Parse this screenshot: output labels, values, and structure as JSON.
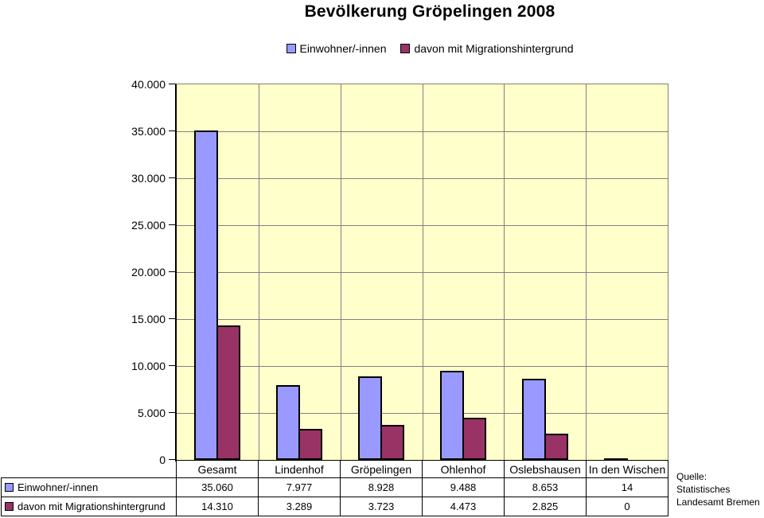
{
  "title": "Bevölkerung Gröpelingen 2008",
  "legend": [
    {
      "label": "Einwohner/-innen",
      "color": "#9999FF"
    },
    {
      "label": "davon mit Migrationshintergrund",
      "color": "#993366"
    }
  ],
  "source_note": {
    "lines": [
      "Quelle:",
      "Statistisches",
      "Landesamt Bremen"
    ]
  },
  "colors": {
    "plot_background": "#FFFFCC",
    "gridline": "#808080",
    "axis": "#000000",
    "series1": "#9999FF",
    "series2": "#993366"
  },
  "chart_data": {
    "type": "bar",
    "title": "Bevölkerung Gröpelingen 2008",
    "categories": [
      "Gesamt",
      "Lindenhof",
      "Gröpelingen",
      "Ohlenhof",
      "Oslebshausen",
      "In den Wischen"
    ],
    "series": [
      {
        "name": "Einwohner/-innen",
        "color": "#9999FF",
        "values": [
          35060,
          7977,
          8928,
          9488,
          8653,
          14
        ],
        "labels": [
          "35.060",
          "7.977",
          "8.928",
          "9.488",
          "8.653",
          "14"
        ]
      },
      {
        "name": "davon mit Migrationshintergrund",
        "color": "#993366",
        "values": [
          14310,
          3289,
          3723,
          4473,
          2825,
          0
        ],
        "labels": [
          "14.310",
          "3.289",
          "3.723",
          "4.473",
          "2.825",
          "0"
        ]
      }
    ],
    "xlabel": "",
    "ylabel": "",
    "ylim": [
      0,
      40000
    ],
    "y_tick_step": 5000,
    "y_tick_labels": [
      "0",
      "5.000",
      "10.000",
      "15.000",
      "20.000",
      "25.000",
      "30.000",
      "35.000",
      "40.000"
    ],
    "grid": true,
    "legend_position": "top",
    "data_table_shown": true
  }
}
